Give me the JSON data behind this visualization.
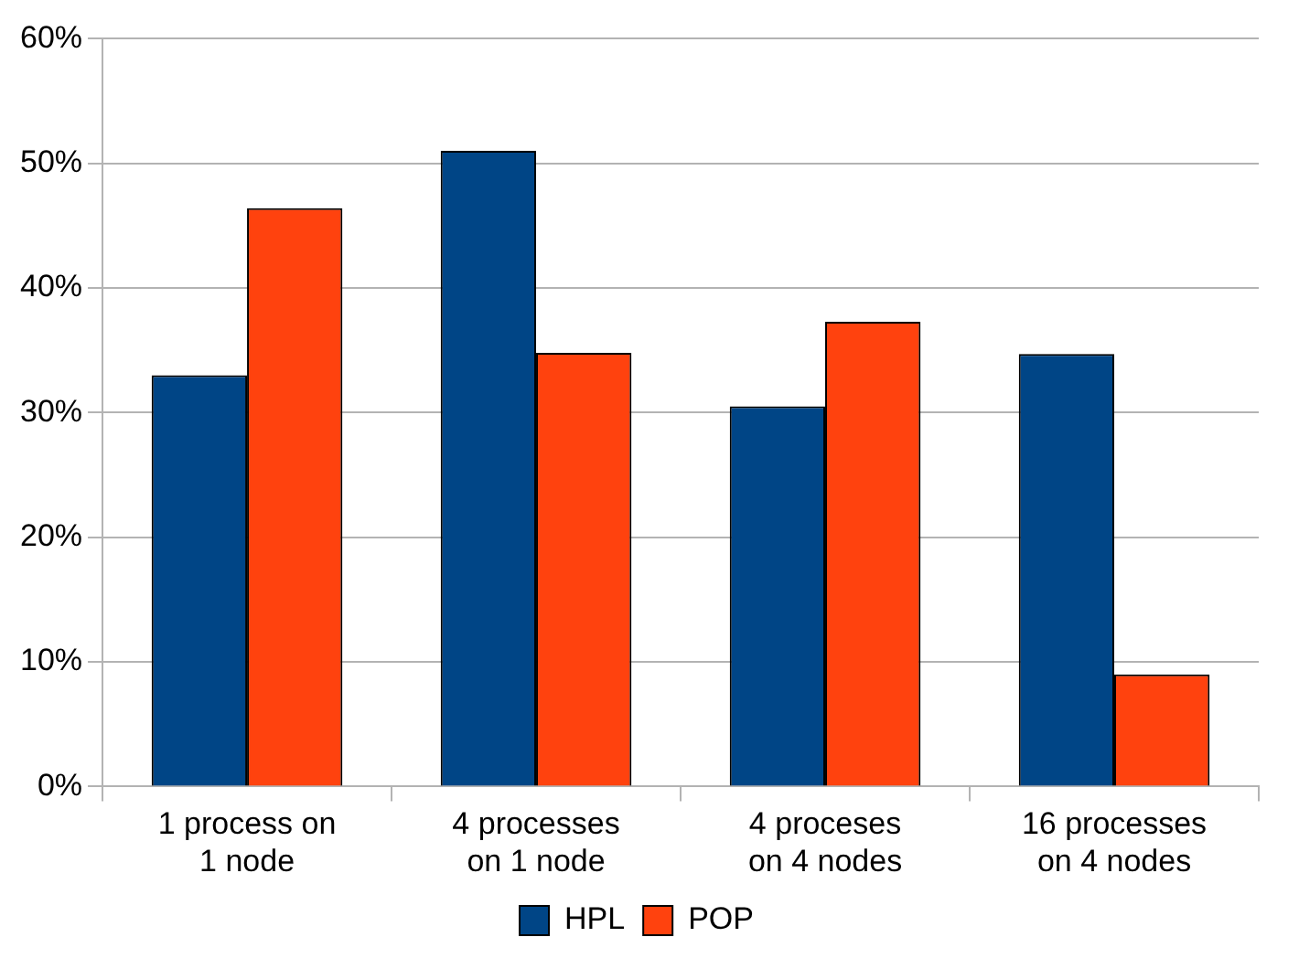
{
  "chart_data": {
    "type": "bar",
    "categories": [
      "1 process on 1 node",
      "4 processes on 1 node",
      "4 proceses on 4 nodes",
      "16 processes on 4 nodes"
    ],
    "series": [
      {
        "name": "HPL",
        "color": "#004586",
        "values": [
          33,
          51,
          30.5,
          34.7
        ]
      },
      {
        "name": "POP",
        "color": "#ff420e",
        "values": [
          46.4,
          34.8,
          37.3,
          9
        ]
      }
    ],
    "ylim": [
      0,
      60
    ],
    "yticks": [
      {
        "value": 0,
        "label": "0%"
      },
      {
        "value": 10,
        "label": "10%"
      },
      {
        "value": 20,
        "label": "20%"
      },
      {
        "value": 30,
        "label": "30%"
      },
      {
        "value": 40,
        "label": "40%"
      },
      {
        "value": 50,
        "label": "50%"
      },
      {
        "value": 60,
        "label": "60%"
      }
    ],
    "grid": "y",
    "legend": "bottom"
  }
}
